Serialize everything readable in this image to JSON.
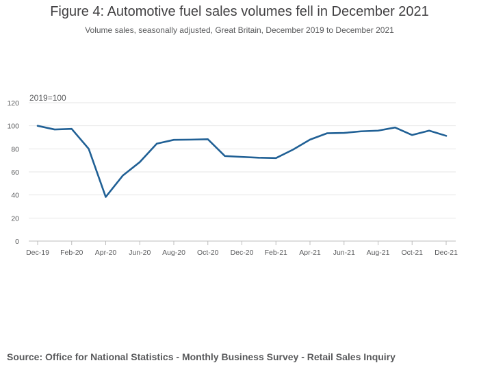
{
  "chart_data": {
    "type": "line",
    "title": "Figure 4: Automotive fuel sales volumes fell in December 2021",
    "subtitle": "Volume sales, seasonally adjusted, Great Britain, December 2019 to December 2021",
    "unit_label": "2019=100",
    "xlabel": "",
    "ylabel": "",
    "ylim": [
      0,
      120
    ],
    "yticks": [
      0,
      20,
      40,
      60,
      80,
      100,
      120
    ],
    "grid": true,
    "x": [
      "Dec-19",
      "Jan-20",
      "Feb-20",
      "Mar-20",
      "Apr-20",
      "May-20",
      "Jun-20",
      "Jul-20",
      "Aug-20",
      "Sep-20",
      "Oct-20",
      "Nov-20",
      "Dec-20",
      "Jan-21",
      "Feb-21",
      "Mar-21",
      "Apr-21",
      "May-21",
      "Jun-21",
      "Jul-21",
      "Aug-21",
      "Sep-21",
      "Oct-21",
      "Nov-21",
      "Dec-21"
    ],
    "x_tick_labels": [
      "Dec-19",
      "Feb-20",
      "Apr-20",
      "Jun-20",
      "Aug-20",
      "Oct-20",
      "Dec-20",
      "Feb-21",
      "Apr-21",
      "Jun-21",
      "Aug-21",
      "Oct-21",
      "Dec-21"
    ],
    "series": [
      {
        "name": "Automotive fuel",
        "color": "#206095",
        "values": [
          100.0,
          96.8,
          97.3,
          80.0,
          38.3,
          56.8,
          68.5,
          84.5,
          87.8,
          88.0,
          88.3,
          73.8,
          73.0,
          72.3,
          72.0,
          79.3,
          88.0,
          93.5,
          93.8,
          95.2,
          95.8,
          98.5,
          92.0,
          95.8,
          91.3
        ]
      }
    ]
  },
  "source_text": "Source: Office for National Statistics - Monthly Business Survey - Retail Sales Inquiry"
}
